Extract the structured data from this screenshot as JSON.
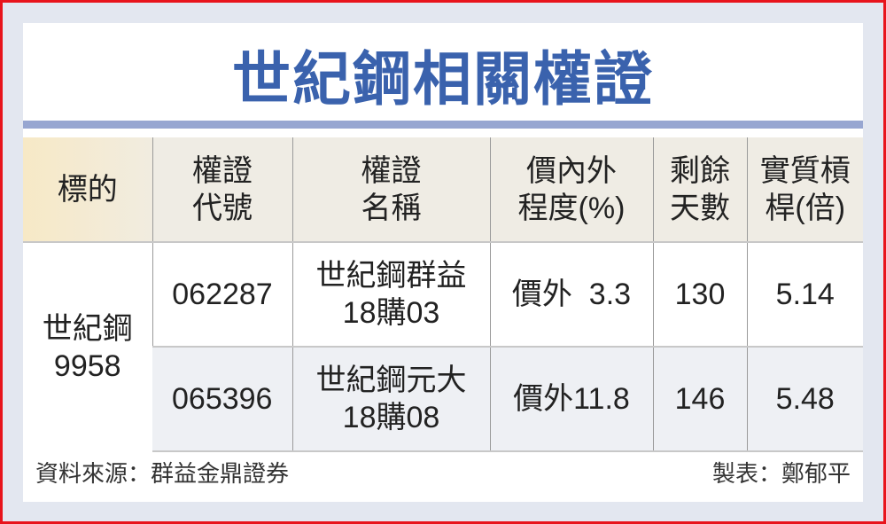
{
  "title": "世紀鋼相關權證",
  "headers": [
    "標的",
    "權證\n代號",
    "權證\n名稱",
    "價內外\n程度(%)",
    "剩餘\n天數",
    "實質槓\n桿(倍)"
  ],
  "underlying": "世紀鋼\n9958",
  "rows": [
    {
      "code": "062287",
      "name": "世紀鋼群益\n18購03",
      "moneyness": "價外  3.3",
      "days": "130",
      "leverage": "5.14"
    },
    {
      "code": "065396",
      "name": "世紀鋼元大\n18購08",
      "moneyness": "價外11.8",
      "days": "146",
      "leverage": "5.48"
    }
  ],
  "footer": {
    "source": "資料來源：群益金鼎證券",
    "author": "製表：鄭郁平"
  },
  "colors": {
    "title": "#3a62ad",
    "border": "#e8141c",
    "rule": "#97a6d1"
  }
}
